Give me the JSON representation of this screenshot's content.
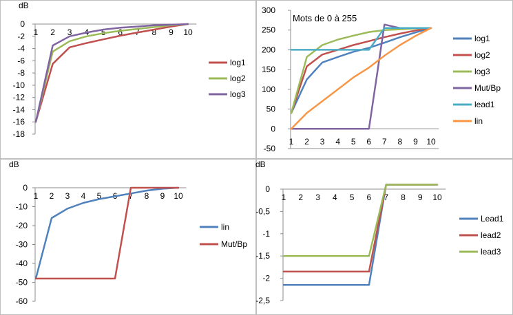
{
  "chart_data": [
    {
      "type": "line",
      "ylabel": "dB",
      "x": [
        1,
        2,
        3,
        4,
        5,
        6,
        7,
        8,
        9,
        10
      ],
      "x_tick_labels": [
        "1",
        "2",
        "3",
        "4",
        "5",
        "6",
        "7",
        "8",
        "9",
        "10"
      ],
      "ylim": [
        -18,
        0
      ],
      "y_ticks": [
        0,
        -2,
        -4,
        -6,
        -8,
        -10,
        -12,
        -14,
        -16,
        -18
      ],
      "y_tick_labels": [
        "0",
        "-2",
        "-4",
        "-6",
        "-8",
        "-10",
        "-12",
        "-14",
        "-16",
        "-18"
      ],
      "grid": false,
      "legend_position": "right",
      "series": [
        {
          "name": "log1",
          "color": "#c0504d",
          "values": [
            -16,
            -6.5,
            -3.8,
            -3.1,
            -2.5,
            -1.9,
            -1.4,
            -0.9,
            -0.4,
            0
          ]
        },
        {
          "name": "log2",
          "color": "#9bbb59",
          "values": [
            -16,
            -4.5,
            -2.8,
            -2.0,
            -1.5,
            -1.1,
            -0.8,
            -0.5,
            -0.2,
            0
          ]
        },
        {
          "name": "log3",
          "color": "#8064a2",
          "values": [
            -16,
            -3.5,
            -2.0,
            -1.4,
            -0.9,
            -0.6,
            -0.4,
            -0.2,
            -0.1,
            0
          ]
        }
      ]
    },
    {
      "type": "line",
      "title": "Mots de 0 à 255",
      "x": [
        1,
        2,
        3,
        4,
        5,
        6,
        7,
        8,
        9,
        10
      ],
      "x_tick_labels": [
        "1",
        "2",
        "3",
        "4",
        "5",
        "6",
        "7",
        "8",
        "9",
        "10"
      ],
      "ylim": [
        -50,
        300
      ],
      "y_ticks": [
        300,
        250,
        200,
        150,
        100,
        50,
        0,
        -50
      ],
      "y_tick_labels": [
        "300",
        "250",
        "200",
        "150",
        "100",
        "50",
        "0",
        "-50"
      ],
      "grid": false,
      "legend_position": "right",
      "series": [
        {
          "name": "log1",
          "color": "#4f81bd",
          "values": [
            40,
            125,
            168,
            182,
            195,
            205,
            218,
            232,
            244,
            255
          ]
        },
        {
          "name": "log2",
          "color": "#c0504d",
          "values": [
            40,
            158,
            188,
            200,
            212,
            222,
            232,
            241,
            249,
            255
          ]
        },
        {
          "name": "log3",
          "color": "#9bbb59",
          "values": [
            40,
            182,
            212,
            226,
            236,
            245,
            250,
            252,
            254,
            255
          ]
        },
        {
          "name": "Mut/Bp",
          "color": "#8064a2",
          "values": [
            0,
            0,
            0,
            0,
            0,
            0,
            264,
            255,
            255,
            255
          ]
        },
        {
          "name": "lead1",
          "color": "#4bacc6",
          "values": [
            200,
            200,
            200,
            200,
            200,
            200,
            255,
            255,
            255,
            255
          ]
        },
        {
          "name": "lin",
          "color": "#f79646",
          "values": [
            0,
            40,
            70,
            100,
            130,
            155,
            185,
            212,
            235,
            255
          ]
        }
      ]
    },
    {
      "type": "line",
      "ylabel": "dB",
      "x": [
        1,
        2,
        3,
        4,
        5,
        6,
        7,
        8,
        9,
        10
      ],
      "x_tick_labels": [
        "1",
        "2",
        "3",
        "4",
        "5",
        "6",
        "7",
        "8",
        "9",
        "10"
      ],
      "ylim": [
        -60,
        0
      ],
      "y_ticks": [
        0,
        -10,
        -20,
        -30,
        -40,
        -50,
        -60
      ],
      "y_tick_labels": [
        "0",
        "-10",
        "-20",
        "-30",
        "-40",
        "-50",
        "-60"
      ],
      "grid": false,
      "legend_position": "right",
      "series": [
        {
          "name": "lin",
          "color": "#4f81bd",
          "values": [
            -48,
            -16,
            -11,
            -8,
            -6,
            -4.5,
            -3,
            -1.5,
            -0.5,
            0
          ]
        },
        {
          "name": "Mut/Bp",
          "color": "#c0504d",
          "values": [
            -48,
            -48,
            -48,
            -48,
            -48,
            -48,
            0,
            0,
            0,
            0
          ]
        }
      ]
    },
    {
      "type": "line",
      "ylabel": "dB",
      "x": [
        1,
        2,
        3,
        4,
        5,
        6,
        7,
        8,
        9,
        10
      ],
      "x_tick_labels": [
        "1",
        "2",
        "3",
        "4",
        "5",
        "6",
        "7",
        "8",
        "9",
        "10"
      ],
      "ylim": [
        -2.5,
        0
      ],
      "y_ticks": [
        0,
        -0.5,
        -1,
        -1.5,
        -2,
        -2.5
      ],
      "y_tick_labels": [
        "0",
        "-0,5",
        "-1",
        "-1,5",
        "-2",
        "-2,5"
      ],
      "grid": false,
      "legend_position": "right",
      "series": [
        {
          "name": "Lead1",
          "color": "#4f81bd",
          "values": [
            -2.15,
            -2.15,
            -2.15,
            -2.15,
            -2.15,
            -2.15,
            0.1,
            0.1,
            0.1,
            0.1
          ]
        },
        {
          "name": "lead2",
          "color": "#c0504d",
          "values": [
            -1.85,
            -1.85,
            -1.85,
            -1.85,
            -1.85,
            -1.85,
            0.1,
            0.1,
            0.1,
            0.1
          ]
        },
        {
          "name": "lead3",
          "color": "#9bbb59",
          "values": [
            -1.5,
            -1.5,
            -1.5,
            -1.5,
            -1.5,
            -1.5,
            0.1,
            0.1,
            0.1,
            0.1
          ]
        }
      ]
    }
  ]
}
